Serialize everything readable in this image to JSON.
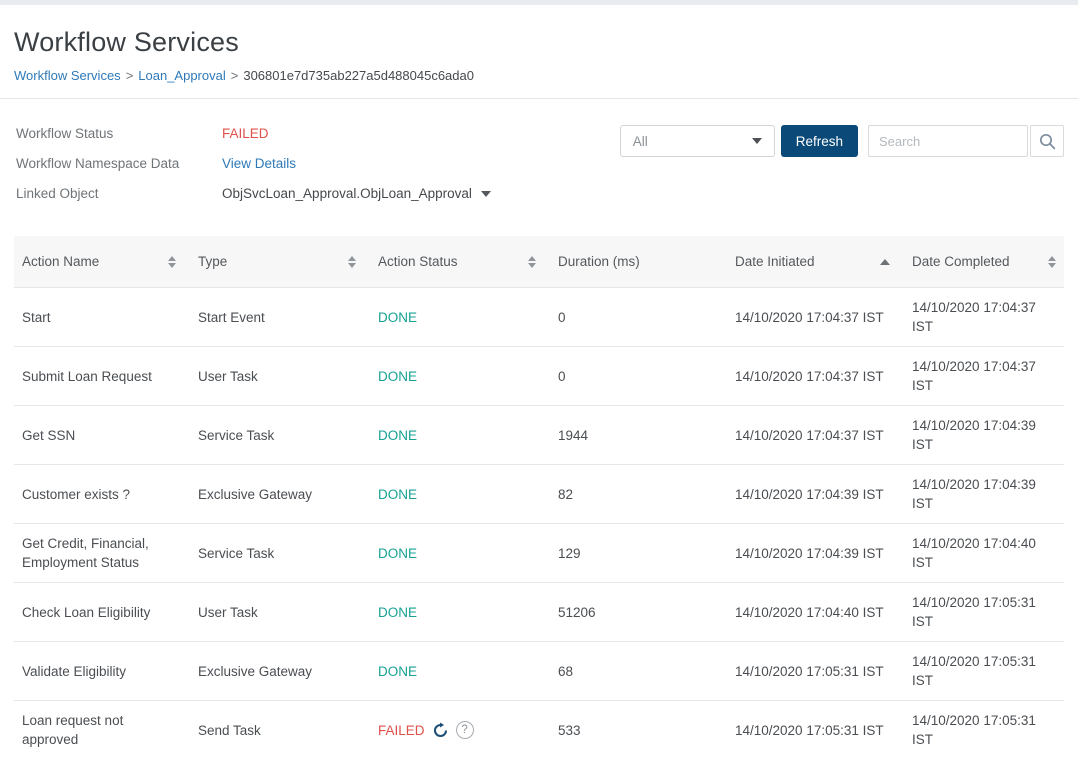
{
  "header": {
    "title": "Workflow Services",
    "breadcrumb": {
      "separator": ">",
      "items": [
        {
          "label": "Workflow Services",
          "type": "link"
        },
        {
          "label": "Loan_Approval",
          "type": "link"
        },
        {
          "label": "306801e7d735ab227a5d488045c6ada0",
          "type": "current"
        }
      ]
    }
  },
  "details": [
    {
      "label": "Workflow Status",
      "value": "FAILED",
      "value_type": "status-failed"
    },
    {
      "label": "Workflow Namespace Data",
      "value": "View Details",
      "value_type": "link"
    },
    {
      "label": "Linked Object",
      "value": "ObjSvcLoan_Approval.ObjLoan_Approval",
      "value_type": "dropdown",
      "icon": "chevron-down-icon"
    }
  ],
  "controls": {
    "filter": {
      "selected": "All",
      "icon": "chevron-down-icon"
    },
    "refresh_label": "Refresh",
    "search_placeholder": "Search",
    "search_icon": "magnifier-icon"
  },
  "table": {
    "columns": [
      {
        "label": "Action Name",
        "sort": "both"
      },
      {
        "label": "Type",
        "sort": "both"
      },
      {
        "label": "Action Status",
        "sort": "both"
      },
      {
        "label": "Duration (ms)",
        "sort": "none"
      },
      {
        "label": "Date Initiated",
        "sort": "asc"
      },
      {
        "label": "Date Completed",
        "sort": "both"
      }
    ],
    "rows": [
      {
        "action_name": "Start",
        "type": "Start Event",
        "status": "DONE",
        "duration_ms": "0",
        "date_initiated": "14/10/2020 17:04:37 IST",
        "date_completed": "14/10/2020 17:04:37 IST"
      },
      {
        "action_name": "Submit Loan Request",
        "type": "User Task",
        "status": "DONE",
        "duration_ms": "0",
        "date_initiated": "14/10/2020 17:04:37 IST",
        "date_completed": "14/10/2020 17:04:37 IST"
      },
      {
        "action_name": "Get SSN",
        "type": "Service Task",
        "status": "DONE",
        "duration_ms": "1944",
        "date_initiated": "14/10/2020 17:04:37 IST",
        "date_completed": "14/10/2020 17:04:39 IST"
      },
      {
        "action_name": "Customer exists ?",
        "type": "Exclusive Gateway",
        "status": "DONE",
        "duration_ms": "82",
        "date_initiated": "14/10/2020 17:04:39 IST",
        "date_completed": "14/10/2020 17:04:39 IST"
      },
      {
        "action_name": "Get Credit, Financial, Employment Status",
        "type": "Service Task",
        "status": "DONE",
        "duration_ms": "129",
        "date_initiated": "14/10/2020 17:04:39 IST",
        "date_completed": "14/10/2020 17:04:40 IST"
      },
      {
        "action_name": "Check Loan Eligibility",
        "type": "User Task",
        "status": "DONE",
        "duration_ms": "51206",
        "date_initiated": "14/10/2020 17:04:40 IST",
        "date_completed": "14/10/2020 17:05:31 IST"
      },
      {
        "action_name": "Validate Eligibility",
        "type": "Exclusive Gateway",
        "status": "DONE",
        "duration_ms": "68",
        "date_initiated": "14/10/2020 17:05:31 IST",
        "date_completed": "14/10/2020 17:05:31 IST"
      },
      {
        "action_name": "Loan request not approved",
        "type": "Send Task",
        "status": "FAILED",
        "status_icons": [
          "retry-icon",
          "help-icon"
        ],
        "help_glyph": "?",
        "duration_ms": "533",
        "date_initiated": "14/10/2020 17:05:31 IST",
        "date_completed": "14/10/2020 17:05:31 IST"
      }
    ]
  },
  "colors": {
    "accent_blue": "#2e79b8",
    "button_navy": "#0b4a78",
    "status_done": "#17a294",
    "status_failed": "#e0514b",
    "top_strip": "#e8ecf0",
    "table_header_bg": "#f7f7f8"
  }
}
